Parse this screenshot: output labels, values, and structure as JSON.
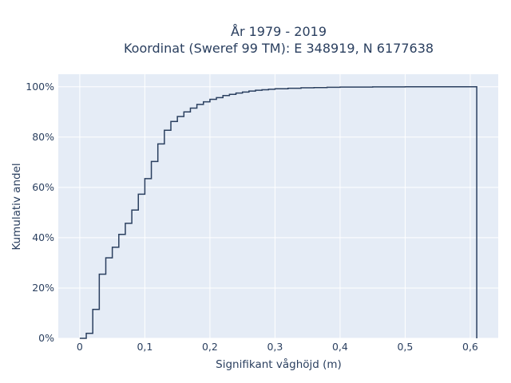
{
  "chart_data": {
    "type": "line",
    "line_shape": "step",
    "title_lines": [
      "År 1979 - 2019",
      "Koordinat (Sweref 99 TM): E 348919, N 6177638"
    ],
    "xlabel": "Signifikant våghöjd (m)",
    "ylabel": "Kumulativ andel",
    "xlim": [
      -0.033,
      0.643
    ],
    "ylim": [
      0,
      1.05
    ],
    "x_ticks": [
      0,
      0.1,
      0.2,
      0.3,
      0.4,
      0.5,
      0.6
    ],
    "x_tick_labels": [
      "0",
      "0,1",
      "0,2",
      "0,3",
      "0,4",
      "0,5",
      "0,6"
    ],
    "y_ticks": [
      0,
      0.2,
      0.4,
      0.6,
      0.8,
      1.0
    ],
    "y_tick_labels": [
      "0%",
      "20%",
      "40%",
      "60%",
      "80%",
      "100%"
    ],
    "grid": true,
    "colors": {
      "line": "#2a3f5f",
      "plot_bg": "#e5ecf6",
      "grid": "#ffffff"
    },
    "series": [
      {
        "x": [
          0,
          0.01,
          0.02,
          0.03,
          0.04,
          0.05,
          0.06,
          0.07,
          0.08,
          0.09,
          0.1,
          0.11,
          0.12,
          0.13,
          0.14,
          0.15,
          0.16,
          0.17,
          0.18,
          0.19,
          0.2,
          0.21,
          0.22,
          0.23,
          0.24,
          0.25,
          0.26,
          0.27,
          0.28,
          0.29,
          0.3,
          0.32,
          0.34,
          0.36,
          0.38,
          0.4,
          0.45,
          0.5,
          0.55,
          0.61,
          0.61
        ],
        "y": [
          0,
          0.02,
          0.115,
          0.255,
          0.32,
          0.362,
          0.413,
          0.457,
          0.51,
          0.573,
          0.635,
          0.703,
          0.773,
          0.827,
          0.862,
          0.882,
          0.9,
          0.915,
          0.93,
          0.94,
          0.95,
          0.957,
          0.965,
          0.97,
          0.975,
          0.979,
          0.983,
          0.986,
          0.988,
          0.99,
          0.992,
          0.994,
          0.996,
          0.997,
          0.998,
          0.999,
          0.9995,
          1.0,
          1.0,
          1.0,
          0
        ]
      }
    ]
  }
}
